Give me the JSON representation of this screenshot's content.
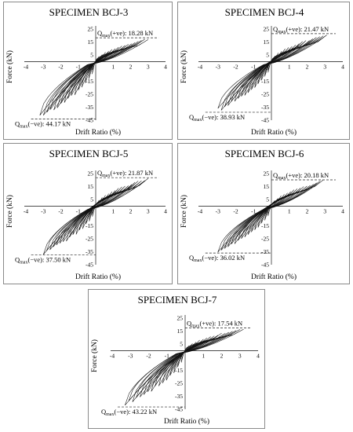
{
  "chart_data": [
    {
      "type": "line",
      "title": "SPECIMEN BCJ-3",
      "xlabel": "Drift Ratio (%)",
      "ylabel": "Force (kN)",
      "xlim": [
        -4,
        4
      ],
      "ylim": [
        -45,
        25
      ],
      "xticks": [
        "-4",
        "-3",
        "-2",
        "-1",
        "1",
        "2",
        "3",
        "4"
      ],
      "yticks": [
        "25",
        "15",
        "5",
        "-5",
        "-15",
        "-25",
        "-35",
        "-45"
      ],
      "qmax_pos": {
        "label": "Qmax(+ve): 18.28 kN",
        "value": 18.28
      },
      "qmax_neg": {
        "label": "Qmax(−ve): 44.17 kN",
        "value": -44.17
      },
      "pos_peak_drift": 3.0,
      "neg_peak_drift": -3.2
    },
    {
      "type": "line",
      "title": "SPECIMEN BCJ-4",
      "xlabel": "Drift Ratio (%)",
      "ylabel": "Force (kN)",
      "xlim": [
        -4,
        4
      ],
      "ylim": [
        -45,
        25
      ],
      "xticks": [
        "-4",
        "-3",
        "-2",
        "-1",
        "1",
        "2",
        "3",
        "4"
      ],
      "yticks": [
        "25",
        "15",
        "5",
        "-5",
        "-15",
        "-25",
        "-35",
        "-45"
      ],
      "qmax_pos": {
        "label": "Qmax(+ve): 21.47 kN",
        "value": 21.47
      },
      "qmax_neg": {
        "label": "Qmax(−ve): 38.93 kN",
        "value": -38.93
      },
      "pos_peak_drift": 3.1,
      "neg_peak_drift": -3.0
    },
    {
      "type": "line",
      "title": "SPECIMEN BCJ-5",
      "xlabel": "Drift Ratio (%)",
      "ylabel": "Force (kN)",
      "xlim": [
        -4,
        4
      ],
      "ylim": [
        -45,
        25
      ],
      "xticks": [
        "-4",
        "-3",
        "-2",
        "-1",
        "1",
        "2",
        "3",
        "4"
      ],
      "yticks": [
        "25",
        "15",
        "5",
        "-5",
        "-15",
        "-25",
        "-35",
        "-45"
      ],
      "qmax_pos": {
        "label": "Qmax(+ve): 21.87 kN",
        "value": 21.87
      },
      "qmax_neg": {
        "label": "Qmax(−ve): 37.50 kN",
        "value": -37.5
      },
      "pos_peak_drift": 3.0,
      "neg_peak_drift": -3.0
    },
    {
      "type": "line",
      "title": "SPECIMEN BCJ-6",
      "xlabel": "Drift Ratio (%)",
      "ylabel": "Force (kN)",
      "xlim": [
        -4,
        4
      ],
      "ylim": [
        -45,
        25
      ],
      "xticks": [
        "-4",
        "-3",
        "-2",
        "-1",
        "1",
        "2",
        "3",
        "4"
      ],
      "yticks": [
        "25",
        "15",
        "5",
        "-5",
        "-15",
        "-25",
        "-35",
        "-45"
      ],
      "qmax_pos": {
        "label": "Qmax(+ve): 20.18 kN",
        "value": 20.18
      },
      "qmax_neg": {
        "label": "Qmax(−ve): 36.02 kN",
        "value": -36.02
      },
      "pos_peak_drift": 2.9,
      "neg_peak_drift": -3.0
    },
    {
      "type": "line",
      "title": "SPECIMEN BCJ-7",
      "xlabel": "Drift Ratio (%)",
      "ylabel": "Force (kN)",
      "xlim": [
        -4,
        4
      ],
      "ylim": [
        -45,
        25
      ],
      "xticks": [
        "-4",
        "-3",
        "-2",
        "-1",
        "1",
        "2",
        "3",
        "4"
      ],
      "yticks": [
        "25",
        "15",
        "5",
        "-5",
        "-15",
        "-25",
        "-35",
        "-45"
      ],
      "qmax_pos": {
        "label": "Qmax(+ve): 17.54 kN",
        "value": 17.54
      },
      "qmax_neg": {
        "label": "Qmax(−ve): 43.22 kN",
        "value": -43.22
      },
      "pos_peak_drift": 3.2,
      "neg_peak_drift": -3.3
    }
  ]
}
